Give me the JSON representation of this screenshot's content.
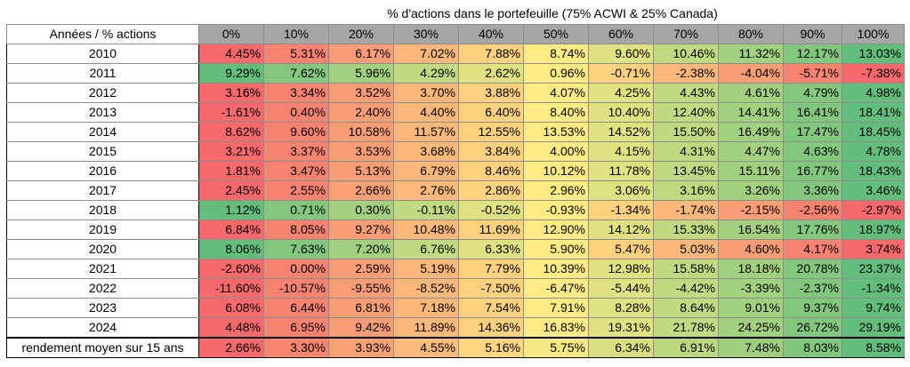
{
  "sheet": {
    "super_header": "% d'actions dans le portefeuille (75% ACWI & 25% Canada)",
    "row_header_label": "Années / % actions",
    "columns": [
      "0%",
      "10%",
      "20%",
      "30%",
      "40%",
      "50%",
      "60%",
      "70%",
      "80%",
      "90%",
      "100%"
    ],
    "rows": [
      {
        "label": "2010",
        "values": [
          "4.45%",
          "5.31%",
          "6.17%",
          "7.02%",
          "7.88%",
          "8.74%",
          "9.60%",
          "10.46%",
          "11.32%",
          "12.17%",
          "13.03%"
        ]
      },
      {
        "label": "2011",
        "values": [
          "9.29%",
          "7.62%",
          "5.96%",
          "4.29%",
          "2.62%",
          "0.96%",
          "-0.71%",
          "-2.38%",
          "-4.04%",
          "-5.71%",
          "-7.38%"
        ]
      },
      {
        "label": "2012",
        "values": [
          "3.16%",
          "3.34%",
          "3.52%",
          "3.70%",
          "3.88%",
          "4.07%",
          "4.25%",
          "4.43%",
          "4.61%",
          "4.79%",
          "4.98%"
        ]
      },
      {
        "label": "2013",
        "values": [
          "-1.61%",
          "0.40%",
          "2.40%",
          "4.40%",
          "6.40%",
          "8.40%",
          "10.40%",
          "12.40%",
          "14.41%",
          "16.41%",
          "18.41%"
        ]
      },
      {
        "label": "2014",
        "values": [
          "8.62%",
          "9.60%",
          "10.58%",
          "11.57%",
          "12.55%",
          "13.53%",
          "14.52%",
          "15.50%",
          "16.49%",
          "17.47%",
          "18.45%"
        ]
      },
      {
        "label": "2015",
        "values": [
          "3.21%",
          "3.37%",
          "3.53%",
          "3.68%",
          "3.84%",
          "4.00%",
          "4.15%",
          "4.31%",
          "4.47%",
          "4.63%",
          "4.78%"
        ]
      },
      {
        "label": "2016",
        "values": [
          "1.81%",
          "3.47%",
          "5.13%",
          "6.79%",
          "8.46%",
          "10.12%",
          "11.78%",
          "13.45%",
          "15.11%",
          "16.77%",
          "18.43%"
        ]
      },
      {
        "label": "2017",
        "values": [
          "2.45%",
          "2.55%",
          "2.66%",
          "2.76%",
          "2.86%",
          "2.96%",
          "3.06%",
          "3.16%",
          "3.26%",
          "3.36%",
          "3.46%"
        ]
      },
      {
        "label": "2018",
        "values": [
          "1.12%",
          "0.71%",
          "0.30%",
          "-0.11%",
          "-0.52%",
          "-0.93%",
          "-1.34%",
          "-1.74%",
          "-2.15%",
          "-2.56%",
          "-2.97%"
        ]
      },
      {
        "label": "2019",
        "values": [
          "6.84%",
          "8.05%",
          "9.27%",
          "10.48%",
          "11.69%",
          "12.90%",
          "14.12%",
          "15.33%",
          "16.54%",
          "17.76%",
          "18.97%"
        ]
      },
      {
        "label": "2020",
        "values": [
          "8.06%",
          "7.63%",
          "7.20%",
          "6.76%",
          "6.33%",
          "5.90%",
          "5.47%",
          "5.03%",
          "4.60%",
          "4.17%",
          "3.74%"
        ]
      },
      {
        "label": "2021",
        "values": [
          "-2.60%",
          "0.00%",
          "2.59%",
          "5.19%",
          "7.79%",
          "10.39%",
          "12.98%",
          "15.58%",
          "18.18%",
          "20.78%",
          "23.37%"
        ]
      },
      {
        "label": "2022",
        "values": [
          "-11.60%",
          "-10.57%",
          "-9.55%",
          "-8.52%",
          "-7.50%",
          "-6.47%",
          "-5.44%",
          "-4.42%",
          "-3.39%",
          "-2.37%",
          "-1.34%"
        ]
      },
      {
        "label": "2023",
        "values": [
          "6.08%",
          "6.44%",
          "6.81%",
          "7.18%",
          "7.54%",
          "7.91%",
          "8.28%",
          "8.64%",
          "9.01%",
          "9.37%",
          "9.74%"
        ]
      },
      {
        "label": "2024",
        "values": [
          "4.48%",
          "6.95%",
          "9.42%",
          "11.89%",
          "14.36%",
          "16.83%",
          "19.31%",
          "21.78%",
          "24.25%",
          "26.72%",
          "29.19%"
        ]
      }
    ],
    "average_row": {
      "label": "rendement moyen sur 15 ans",
      "values": [
        "2.66%",
        "3.30%",
        "3.93%",
        "4.55%",
        "5.16%",
        "5.75%",
        "6.34%",
        "6.91%",
        "7.48%",
        "8.03%",
        "8.58%"
      ]
    },
    "colors": {
      "low": "#f8696b",
      "mid": "#ffeb84",
      "high": "#63be7b",
      "header_bg": "#a6a6a6"
    }
  }
}
